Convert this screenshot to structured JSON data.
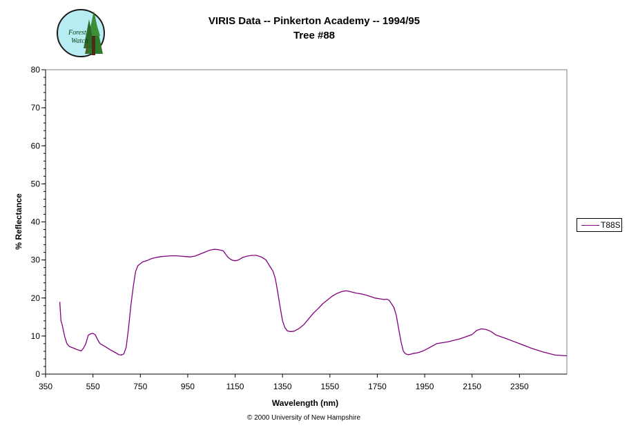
{
  "logo": {
    "line1": "Forest",
    "line2": "Watch"
  },
  "header": {
    "title_line1": "VIRIS Data -- Pinkerton Academy -- 1994/95",
    "title_line2": "Tree #88"
  },
  "footer": {
    "copyright": "© 2000 University of New Hampshire"
  },
  "colors": {
    "series": "#800080",
    "axis": "#000000",
    "background": "#ffffff"
  },
  "chart_data": {
    "type": "line",
    "title": "VIRIS Data -- Pinkerton Academy -- 1994/95\nTree #88",
    "xlabel": "Wavelength (nm)",
    "ylabel": "% Reflectance",
    "xlim": [
      350,
      2550
    ],
    "ylim": [
      0,
      80
    ],
    "x_ticks": [
      350,
      550,
      750,
      950,
      1150,
      1350,
      1550,
      1750,
      1950,
      2150,
      2350
    ],
    "y_ticks": [
      0,
      10,
      20,
      30,
      40,
      50,
      60,
      70,
      80
    ],
    "grid": false,
    "legend_position": "right",
    "series": [
      {
        "name": "T88S",
        "color": "#800080",
        "x": [
          410,
          415,
          420,
          430,
          440,
          450,
          460,
          470,
          480,
          490,
          500,
          510,
          520,
          530,
          540,
          550,
          560,
          570,
          580,
          600,
          620,
          640,
          660,
          670,
          680,
          690,
          700,
          710,
          720,
          730,
          740,
          750,
          760,
          780,
          800,
          820,
          840,
          860,
          880,
          900,
          920,
          940,
          960,
          980,
          1000,
          1020,
          1040,
          1060,
          1080,
          1100,
          1110,
          1120,
          1130,
          1140,
          1150,
          1160,
          1170,
          1180,
          1200,
          1220,
          1240,
          1260,
          1280,
          1290,
          1300,
          1310,
          1320,
          1330,
          1340,
          1350,
          1360,
          1370,
          1380,
          1390,
          1400,
          1420,
          1440,
          1460,
          1480,
          1500,
          1520,
          1540,
          1560,
          1580,
          1600,
          1620,
          1640,
          1660,
          1670,
          1680,
          1700,
          1720,
          1740,
          1760,
          1780,
          1790,
          1800,
          1810,
          1820,
          1830,
          1840,
          1850,
          1860,
          1870,
          1880,
          1890,
          1900,
          1920,
          1940,
          1960,
          1980,
          2000,
          2050,
          2100,
          2150,
          2170,
          2190,
          2210,
          2230,
          2250,
          2300,
          2350,
          2400,
          2450,
          2500,
          2550
        ],
        "y": [
          19,
          14,
          13,
          10,
          8,
          7.3,
          7,
          6.8,
          6.5,
          6.3,
          6.1,
          6.8,
          8,
          10.2,
          10.6,
          10.7,
          10.3,
          9,
          8,
          7.3,
          6.5,
          5.8,
          5.1,
          5,
          5.3,
          7,
          12,
          18,
          23,
          27,
          28.5,
          29,
          29.5,
          29.9,
          30.4,
          30.7,
          30.9,
          31,
          31.1,
          31.1,
          31,
          30.9,
          30.8,
          31,
          31.5,
          32,
          32.5,
          32.8,
          32.7,
          32.4,
          31.5,
          30.7,
          30.2,
          29.9,
          29.8,
          29.9,
          30.2,
          30.6,
          31,
          31.2,
          31.2,
          30.8,
          30,
          29,
          28,
          27,
          25,
          21.5,
          17.5,
          14,
          12.2,
          11.4,
          11.2,
          11.2,
          11.3,
          12,
          13,
          14.5,
          16,
          17.2,
          18.5,
          19.5,
          20.5,
          21.2,
          21.7,
          21.9,
          21.6,
          21.3,
          21.2,
          21.1,
          20.8,
          20.4,
          20,
          19.8,
          19.6,
          19.7,
          19.4,
          18.5,
          17.5,
          15.5,
          12,
          8.5,
          6,
          5.3,
          5.1,
          5.2,
          5.4,
          5.6,
          6,
          6.6,
          7.3,
          8,
          8.5,
          9.3,
          10.4,
          11.5,
          11.9,
          11.7,
          11.2,
          10.3,
          9.2,
          8,
          6.8,
          5.8,
          5,
          4.8
        ]
      }
    ]
  }
}
